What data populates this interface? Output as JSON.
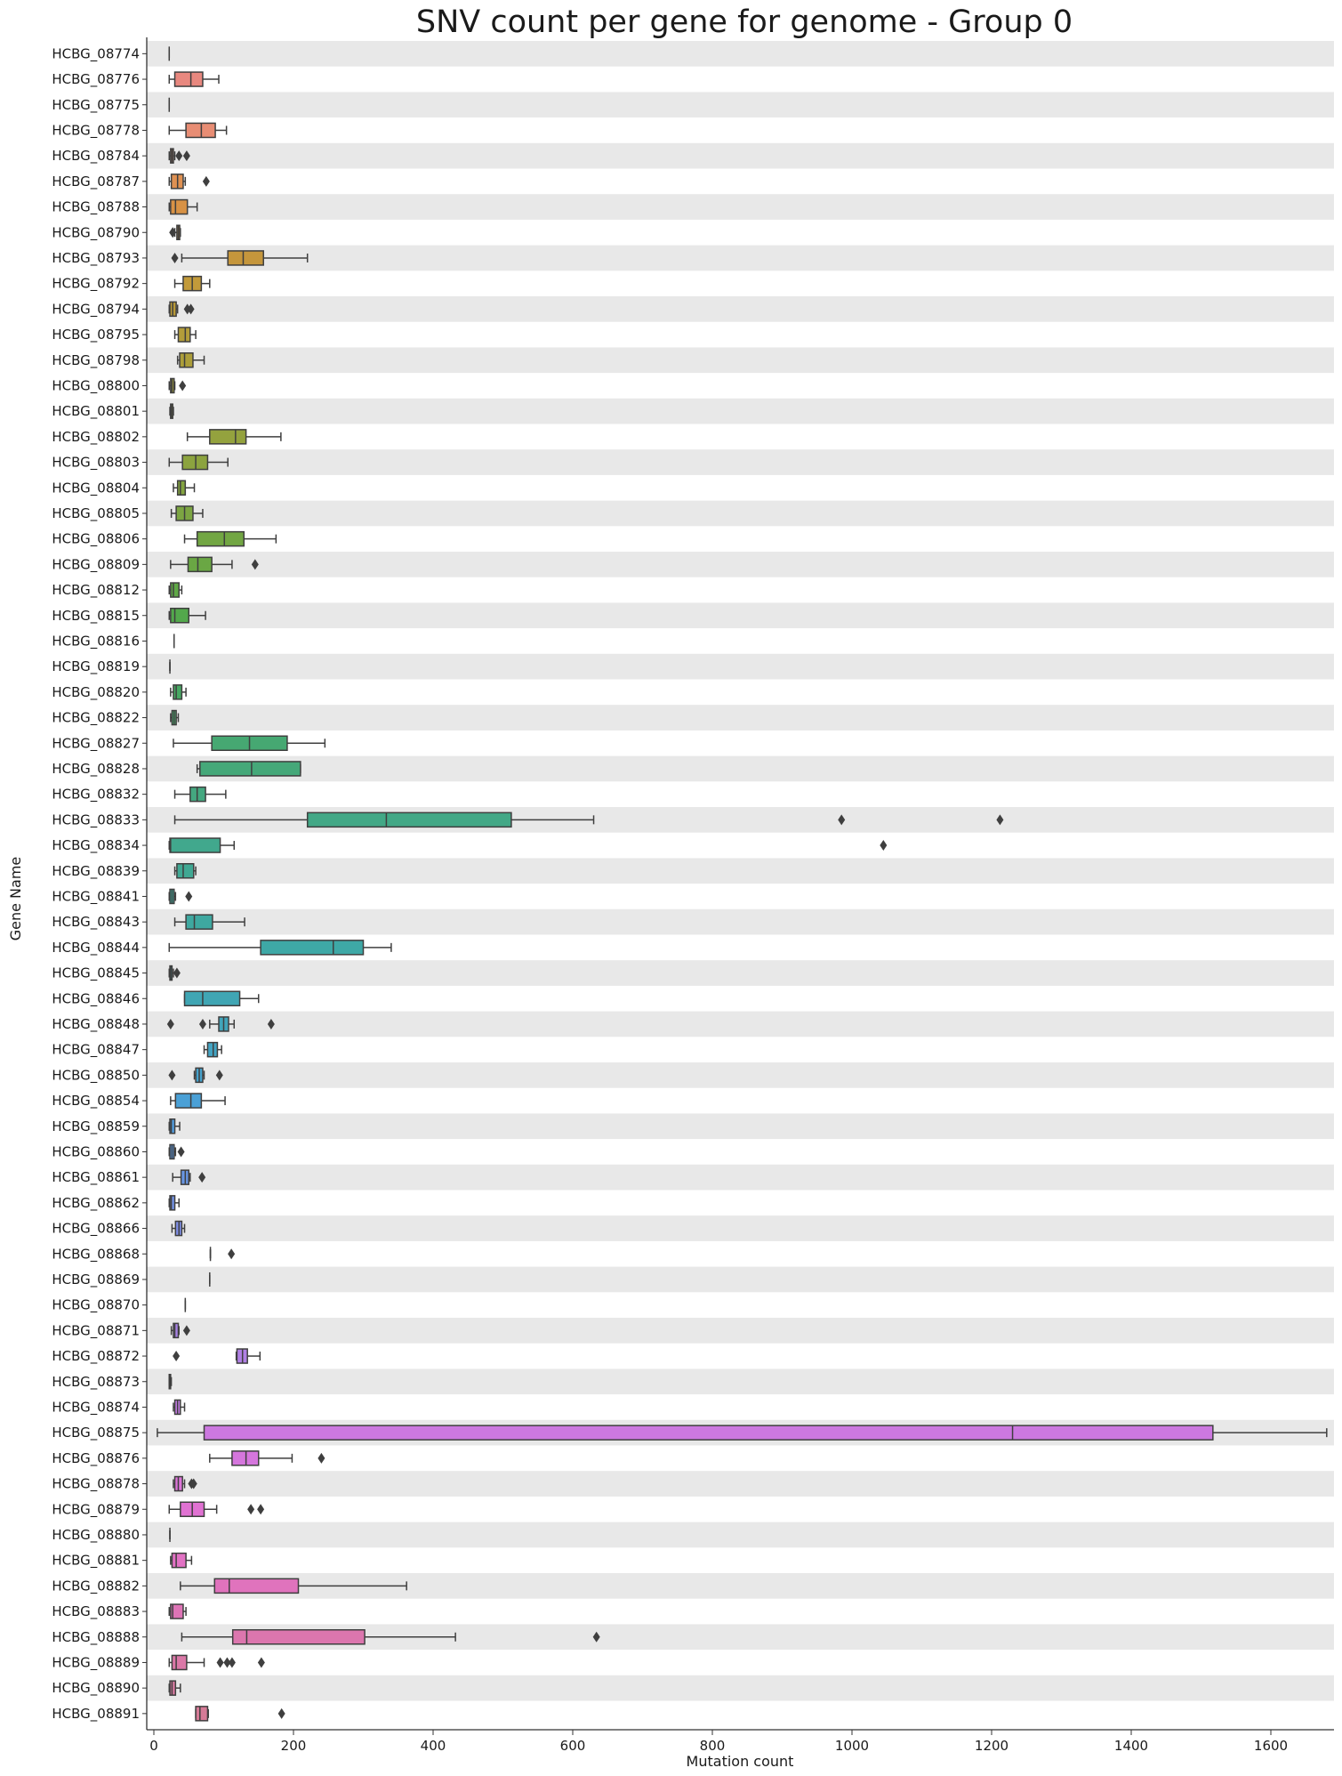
{
  "chart_data": {
    "type": "box",
    "orientation": "horizontal",
    "title": "SNV count per gene for genome - Group 0",
    "xlabel": "Mutation count",
    "ylabel": "Gene Name",
    "xlim": [
      -10,
      1690
    ],
    "xticks": [
      0,
      200,
      400,
      600,
      800,
      1000,
      1200,
      1400,
      1600
    ],
    "row_banding": "alternating light gray",
    "genes": [
      {
        "name": "HCBG_08774",
        "whisker": [
          22,
          22
        ],
        "q1": 22,
        "median": 22,
        "q3": 22,
        "outliers": [],
        "color": "#e8887f"
      },
      {
        "name": "HCBG_08776",
        "whisker": [
          22,
          93
        ],
        "q1": 30,
        "median": 53,
        "q3": 70,
        "outliers": [],
        "color": "#e8887f"
      },
      {
        "name": "HCBG_08775",
        "whisker": [
          22,
          22
        ],
        "q1": 22,
        "median": 22,
        "q3": 22,
        "outliers": [],
        "color": "#e8897a"
      },
      {
        "name": "HCBG_08778",
        "whisker": [
          22,
          104
        ],
        "q1": 46,
        "median": 68,
        "q3": 88,
        "outliers": [],
        "color": "#e88d74"
      },
      {
        "name": "HCBG_08784",
        "whisker": [
          22,
          30
        ],
        "q1": 24,
        "median": 26,
        "q3": 28,
        "outliers": [
          36,
          47
        ],
        "color": "#e6906b"
      },
      {
        "name": "HCBG_08787",
        "whisker": [
          22,
          45
        ],
        "q1": 25,
        "median": 34,
        "q3": 42,
        "outliers": [
          75
        ],
        "color": "#df9152"
      },
      {
        "name": "HCBG_08788",
        "whisker": [
          22,
          62
        ],
        "q1": 24,
        "median": 31,
        "q3": 48,
        "outliers": [],
        "color": "#d89245"
      },
      {
        "name": "HCBG_08790",
        "whisker": [
          30,
          38
        ],
        "q1": 33,
        "median": 35,
        "q3": 37,
        "outliers": [
          27
        ],
        "color": "#d1953f"
      },
      {
        "name": "HCBG_08793",
        "whisker": [
          40,
          220
        ],
        "q1": 106,
        "median": 128,
        "q3": 157,
        "outliers": [
          30
        ],
        "color": "#c5963c"
      },
      {
        "name": "HCBG_08792",
        "whisker": [
          30,
          80
        ],
        "q1": 42,
        "median": 55,
        "q3": 68,
        "outliers": [],
        "color": "#c29a3a"
      },
      {
        "name": "HCBG_08794",
        "whisker": [
          22,
          34
        ],
        "q1": 23,
        "median": 27,
        "q3": 32,
        "outliers": [
          48,
          53
        ],
        "color": "#b99a38"
      },
      {
        "name": "HCBG_08795",
        "whisker": [
          30,
          60
        ],
        "q1": 35,
        "median": 45,
        "q3": 52,
        "outliers": [],
        "color": "#b39d3a"
      },
      {
        "name": "HCBG_08798",
        "whisker": [
          34,
          72
        ],
        "q1": 37,
        "median": 44,
        "q3": 56,
        "outliers": [],
        "color": "#ac9e3a"
      },
      {
        "name": "HCBG_08800",
        "whisker": [
          22,
          30
        ],
        "q1": 24,
        "median": 26,
        "q3": 29,
        "outliers": [
          41
        ],
        "color": "#a4a03b"
      },
      {
        "name": "HCBG_08801",
        "whisker": [
          23,
          28
        ],
        "q1": 24,
        "median": 25,
        "q3": 27,
        "outliers": [],
        "color": "#9ca13c"
      },
      {
        "name": "HCBG_08802",
        "whisker": [
          48,
          182
        ],
        "q1": 80,
        "median": 117,
        "q3": 132,
        "outliers": [],
        "color": "#94a23e"
      },
      {
        "name": "HCBG_08803",
        "whisker": [
          22,
          106
        ],
        "q1": 41,
        "median": 60,
        "q3": 77,
        "outliers": [],
        "color": "#8ca33f"
      },
      {
        "name": "HCBG_08804",
        "whisker": [
          28,
          58
        ],
        "q1": 34,
        "median": 38,
        "q3": 45,
        "outliers": [],
        "color": "#84a440"
      },
      {
        "name": "HCBG_08805",
        "whisker": [
          25,
          70
        ],
        "q1": 32,
        "median": 44,
        "q3": 56,
        "outliers": [],
        "color": "#7ca542"
      },
      {
        "name": "HCBG_08806",
        "whisker": [
          44,
          175
        ],
        "q1": 62,
        "median": 101,
        "q3": 129,
        "outliers": [],
        "color": "#72a643"
      },
      {
        "name": "HCBG_08809",
        "whisker": [
          24,
          112
        ],
        "q1": 49,
        "median": 63,
        "q3": 83,
        "outliers": [
          145
        ],
        "color": "#6aa744"
      },
      {
        "name": "HCBG_08812",
        "whisker": [
          22,
          40
        ],
        "q1": 24,
        "median": 28,
        "q3": 36,
        "outliers": [],
        "color": "#5fa846"
      },
      {
        "name": "HCBG_08815",
        "whisker": [
          22,
          74
        ],
        "q1": 24,
        "median": 30,
        "q3": 50,
        "outliers": [],
        "color": "#53a84c"
      },
      {
        "name": "HCBG_08816",
        "whisker": [
          29,
          29
        ],
        "q1": 29,
        "median": 29,
        "q3": 29,
        "outliers": [],
        "color": "#4aa853"
      },
      {
        "name": "HCBG_08819",
        "whisker": [
          23,
          23
        ],
        "q1": 23,
        "median": 23,
        "q3": 23,
        "outliers": [],
        "color": "#48a85b"
      },
      {
        "name": "HCBG_08820",
        "whisker": [
          24,
          46
        ],
        "q1": 28,
        "median": 32,
        "q3": 40,
        "outliers": [],
        "color": "#48a863"
      },
      {
        "name": "HCBG_08822",
        "whisker": [
          24,
          35
        ],
        "q1": 26,
        "median": 29,
        "q3": 32,
        "outliers": [],
        "color": "#47a86b"
      },
      {
        "name": "HCBG_08827",
        "whisker": [
          28,
          245
        ],
        "q1": 83,
        "median": 137,
        "q3": 191,
        "outliers": [],
        "color": "#46a872"
      },
      {
        "name": "HCBG_08828",
        "whisker": [
          62,
          210
        ],
        "q1": 66,
        "median": 140,
        "q3": 210,
        "outliers": [],
        "color": "#45a879"
      },
      {
        "name": "HCBG_08832",
        "whisker": [
          30,
          103
        ],
        "q1": 52,
        "median": 62,
        "q3": 74,
        "outliers": [],
        "color": "#44a880"
      },
      {
        "name": "HCBG_08833",
        "whisker": [
          30,
          630
        ],
        "q1": 220,
        "median": 333,
        "q3": 512,
        "outliers": [
          985,
          1212
        ],
        "color": "#42a886"
      },
      {
        "name": "HCBG_08834",
        "whisker": [
          22,
          115
        ],
        "q1": 23,
        "median": 24,
        "q3": 95,
        "outliers": [
          1045
        ],
        "color": "#41a88d"
      },
      {
        "name": "HCBG_08839",
        "whisker": [
          30,
          60
        ],
        "q1": 33,
        "median": 42,
        "q3": 57,
        "outliers": [],
        "color": "#40a893"
      },
      {
        "name": "HCBG_08841",
        "whisker": [
          22,
          31
        ],
        "q1": 23,
        "median": 26,
        "q3": 29,
        "outliers": [
          50
        ],
        "color": "#3fa899"
      },
      {
        "name": "HCBG_08843",
        "whisker": [
          30,
          130
        ],
        "q1": 46,
        "median": 58,
        "q3": 84,
        "outliers": [],
        "color": "#3ea8a0"
      },
      {
        "name": "HCBG_08844",
        "whisker": [
          22,
          340
        ],
        "q1": 153,
        "median": 257,
        "q3": 300,
        "outliers": [],
        "color": "#3ea8a6"
      },
      {
        "name": "HCBG_08845",
        "whisker": [
          22,
          28
        ],
        "q1": 23,
        "median": 24,
        "q3": 26,
        "outliers": [
          33
        ],
        "color": "#3fa7ad"
      },
      {
        "name": "HCBG_08846",
        "whisker": [
          44,
          150
        ],
        "q1": 44,
        "median": 70,
        "q3": 123,
        "outliers": [],
        "color": "#40a6b4"
      },
      {
        "name": "HCBG_08848",
        "whisker": [
          80,
          115
        ],
        "q1": 93,
        "median": 100,
        "q3": 107,
        "outliers": [
          24,
          70,
          168
        ],
        "color": "#41a5bb"
      },
      {
        "name": "HCBG_08847",
        "whisker": [
          72,
          97
        ],
        "q1": 77,
        "median": 85,
        "q3": 91,
        "outliers": [],
        "color": "#43a4c3"
      },
      {
        "name": "HCBG_08850",
        "whisker": [
          58,
          72
        ],
        "q1": 60,
        "median": 65,
        "q3": 70,
        "outliers": [
          26,
          94
        ],
        "color": "#46a2cc"
      },
      {
        "name": "HCBG_08854",
        "whisker": [
          24,
          102
        ],
        "q1": 31,
        "median": 53,
        "q3": 68,
        "outliers": [],
        "color": "#4aa0d6"
      },
      {
        "name": "HCBG_08859",
        "whisker": [
          22,
          37
        ],
        "q1": 23,
        "median": 25,
        "q3": 30,
        "outliers": [],
        "color": "#529ddf"
      },
      {
        "name": "HCBG_08860",
        "whisker": [
          22,
          31
        ],
        "q1": 23,
        "median": 26,
        "q3": 29,
        "outliers": [
          39
        ],
        "color": "#5a99e2"
      },
      {
        "name": "HCBG_08861",
        "whisker": [
          27,
          52
        ],
        "q1": 39,
        "median": 45,
        "q3": 50,
        "outliers": [
          69
        ],
        "color": "#6896e3"
      },
      {
        "name": "HCBG_08862",
        "whisker": [
          22,
          36
        ],
        "q1": 23,
        "median": 25,
        "q3": 30,
        "outliers": [],
        "color": "#7392e4"
      },
      {
        "name": "HCBG_08866",
        "whisker": [
          26,
          44
        ],
        "q1": 31,
        "median": 36,
        "q3": 40,
        "outliers": [],
        "color": "#7f8ee5"
      },
      {
        "name": "HCBG_08868",
        "whisker": [
          81,
          81
        ],
        "q1": 81,
        "median": 81,
        "q3": 81,
        "outliers": [
          111
        ],
        "color": "#8a8be5"
      },
      {
        "name": "HCBG_08869",
        "whisker": [
          80,
          80
        ],
        "q1": 80,
        "median": 80,
        "q3": 80,
        "outliers": [],
        "color": "#9488e5"
      },
      {
        "name": "HCBG_08870",
        "whisker": [
          45,
          45
        ],
        "q1": 45,
        "median": 45,
        "q3": 45,
        "outliers": [],
        "color": "#9e86e5"
      },
      {
        "name": "HCBG_08871",
        "whisker": [
          25,
          36
        ],
        "q1": 28,
        "median": 30,
        "q3": 35,
        "outliers": [
          47
        ],
        "color": "#a883e5"
      },
      {
        "name": "HCBG_08872",
        "whisker": [
          118,
          152
        ],
        "q1": 119,
        "median": 127,
        "q3": 134,
        "outliers": [
          32
        ],
        "color": "#b080e4"
      },
      {
        "name": "HCBG_08873",
        "whisker": [
          22,
          25
        ],
        "q1": 22,
        "median": 23,
        "q3": 24,
        "outliers": [],
        "color": "#ba7ee4"
      },
      {
        "name": "HCBG_08874",
        "whisker": [
          28,
          44
        ],
        "q1": 30,
        "median": 34,
        "q3": 38,
        "outliers": [],
        "color": "#c37ce3"
      },
      {
        "name": "HCBG_08875",
        "whisker": [
          5,
          1680
        ],
        "q1": 72,
        "median": 1230,
        "q3": 1517,
        "outliers": [],
        "color": "#cc78e0"
      },
      {
        "name": "HCBG_08876",
        "whisker": [
          80,
          198
        ],
        "q1": 112,
        "median": 132,
        "q3": 150,
        "outliers": [
          240
        ],
        "color": "#d576dd"
      },
      {
        "name": "HCBG_08878",
        "whisker": [
          28,
          44
        ],
        "q1": 30,
        "median": 35,
        "q3": 41,
        "outliers": [
          54,
          57
        ],
        "color": "#dc74d8"
      },
      {
        "name": "HCBG_08879",
        "whisker": [
          22,
          90
        ],
        "q1": 38,
        "median": 55,
        "q3": 72,
        "outliers": [
          139,
          153
        ],
        "color": "#e072d2"
      },
      {
        "name": "HCBG_08880",
        "whisker": [
          23,
          23
        ],
        "q1": 23,
        "median": 23,
        "q3": 23,
        "outliers": [],
        "color": "#e271cb"
      },
      {
        "name": "HCBG_08881",
        "whisker": [
          24,
          54
        ],
        "q1": 26,
        "median": 32,
        "q3": 46,
        "outliers": [],
        "color": "#e272c4"
      },
      {
        "name": "HCBG_08882",
        "whisker": [
          38,
          362
        ],
        "q1": 87,
        "median": 108,
        "q3": 207,
        "outliers": [],
        "color": "#e073bd"
      },
      {
        "name": "HCBG_08883",
        "whisker": [
          22,
          46
        ],
        "q1": 24,
        "median": 27,
        "q3": 42,
        "outliers": [],
        "color": "#de74b6"
      },
      {
        "name": "HCBG_08888",
        "whisker": [
          40,
          432
        ],
        "q1": 113,
        "median": 133,
        "q3": 302,
        "outliers": [
          634
        ],
        "color": "#dc76ae"
      },
      {
        "name": "HCBG_08889",
        "whisker": [
          22,
          72
        ],
        "q1": 26,
        "median": 32,
        "q3": 47,
        "outliers": [
          95,
          105,
          112,
          154
        ],
        "color": "#da78a7"
      },
      {
        "name": "HCBG_08890",
        "whisker": [
          22,
          38
        ],
        "q1": 23,
        "median": 26,
        "q3": 31,
        "outliers": [],
        "color": "#d8799f"
      },
      {
        "name": "HCBG_08891",
        "whisker": [
          60,
          78
        ],
        "q1": 60,
        "median": 66,
        "q3": 77,
        "outliers": [
          183
        ],
        "color": "#d67b97"
      }
    ]
  }
}
